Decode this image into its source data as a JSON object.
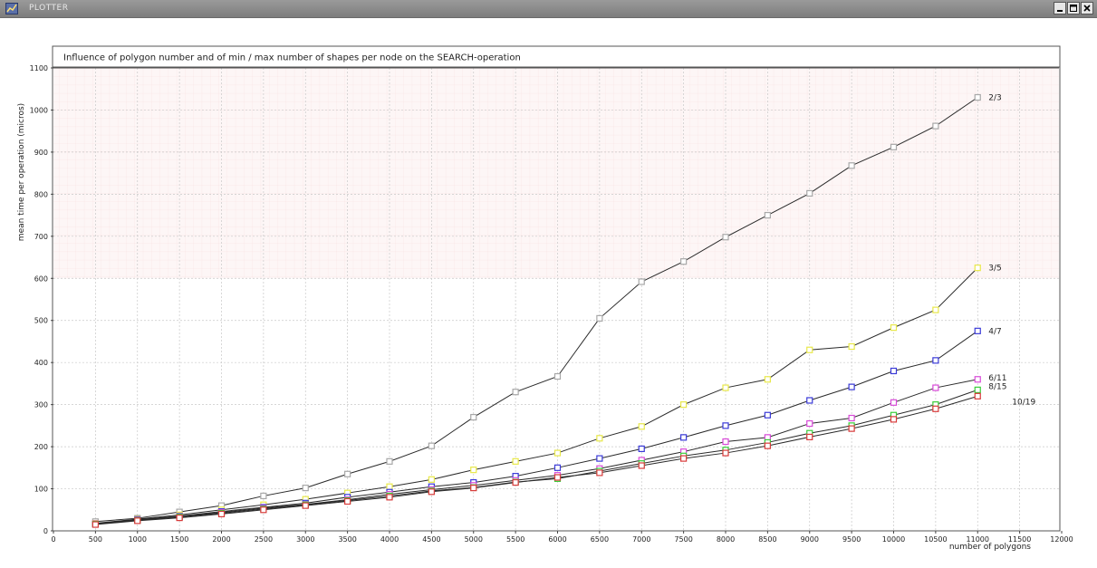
{
  "window": {
    "title": "PLOTTER",
    "icons": {
      "app": "plotter-app-icon",
      "minimize": "minimize-icon",
      "maximize": "maximize-icon",
      "close": "close-icon"
    }
  },
  "chart_data": {
    "type": "line",
    "title": "Influence of polygon number and of min / max number of shapes per node on the SEARCH-operation",
    "xlabel": "number of polygons",
    "ylabel": "mean time per operation  (micros)",
    "xlim": [
      0,
      12000
    ],
    "ylim": [
      0,
      1100
    ],
    "x_ticks": [
      "0",
      "500",
      "1000",
      "1500",
      "2000",
      "2500",
      "3000",
      "3500",
      "4000",
      "4500",
      "5000",
      "5500",
      "6000",
      "6500",
      "7000",
      "7500",
      "8000",
      "8500",
      "9000",
      "9500",
      "10000",
      "10500",
      "11000",
      "11500",
      "12000"
    ],
    "y_ticks": [
      "0",
      "100",
      "200",
      "300",
      "400",
      "500",
      "600",
      "700",
      "800",
      "900",
      "1000",
      "1100"
    ],
    "grid": true,
    "x": [
      500,
      1000,
      1500,
      2000,
      2500,
      3000,
      3500,
      4000,
      4500,
      5000,
      5500,
      6000,
      6500,
      7000,
      7500,
      8000,
      8500,
      9000,
      9500,
      10000,
      10500,
      11000
    ],
    "series": [
      {
        "name": "2/3",
        "color": "#a8a8a8",
        "values": [
          22,
          30,
          45,
          60,
          83,
          102,
          135,
          165,
          202,
          270,
          330,
          367,
          505,
          592,
          640,
          698,
          750,
          802,
          868,
          912,
          962,
          1030
        ]
      },
      {
        "name": "3/5",
        "color": "#e8e84a",
        "values": [
          18,
          28,
          38,
          50,
          62,
          75,
          90,
          105,
          122,
          145,
          165,
          185,
          220,
          248,
          300,
          340,
          360,
          430,
          438,
          483,
          525,
          625
        ]
      },
      {
        "name": "4/7",
        "color": "#3a3ad8",
        "values": [
          17,
          27,
          35,
          46,
          56,
          66,
          80,
          92,
          105,
          115,
          130,
          150,
          172,
          195,
          222,
          250,
          275,
          310,
          342,
          380,
          405,
          475
        ]
      },
      {
        "name": "6/11",
        "color": "#d84ad8",
        "values": [
          17,
          26,
          34,
          44,
          54,
          63,
          74,
          87,
          98,
          108,
          120,
          132,
          148,
          168,
          188,
          212,
          222,
          255,
          268,
          305,
          340,
          360
        ]
      },
      {
        "name": "8/15",
        "color": "#3acc3a",
        "values": [
          16,
          25,
          33,
          42,
          52,
          62,
          72,
          83,
          95,
          103,
          116,
          124,
          142,
          160,
          178,
          192,
          210,
          232,
          250,
          275,
          300,
          335
        ]
      },
      {
        "name": "10/19",
        "color": "#d83a3a",
        "values": [
          15,
          24,
          31,
          40,
          50,
          60,
          70,
          80,
          93,
          102,
          115,
          127,
          138,
          155,
          172,
          185,
          202,
          223,
          243,
          265,
          290,
          320
        ]
      }
    ]
  }
}
